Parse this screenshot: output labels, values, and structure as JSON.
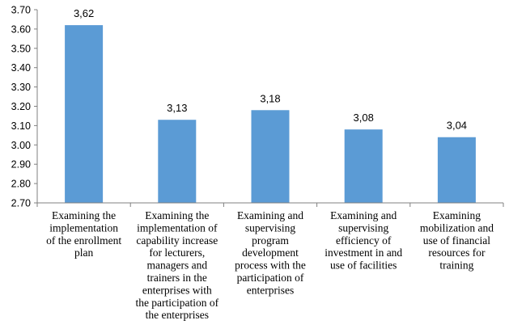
{
  "chart_data": {
    "type": "bar",
    "title": "",
    "xlabel": "",
    "ylabel": "",
    "ylim": [
      2.7,
      3.7
    ],
    "ytick_step": 0.1,
    "ytick_labels": [
      "2.70",
      "2.80",
      "2.90",
      "3.00",
      "3.10",
      "3.20",
      "3.30",
      "3.40",
      "3.50",
      "3.60",
      "3.70"
    ],
    "values": [
      3.62,
      3.13,
      3.18,
      3.08,
      3.04
    ],
    "data_labels": [
      "3,62",
      "3,13",
      "3,18",
      "3,08",
      "3,04"
    ],
    "categories": [
      [
        "Examining the",
        "implementation",
        "of the enrollment",
        "plan"
      ],
      [
        "Examining the",
        "implementation of",
        "capability increase",
        "for lecturers,",
        "managers and",
        "trainers in the",
        "enterprises with",
        "the participation of",
        "the enterprises"
      ],
      [
        "Examining and",
        "supervising",
        "program",
        "development",
        "process with the",
        "participation of",
        "enterprises"
      ],
      [
        "Examining and",
        "supervising",
        "efficiency of",
        "investment in and",
        "use of facilities"
      ],
      [
        "Examining",
        "mobilization and",
        "use of financial",
        "resources for",
        "training"
      ]
    ],
    "bar_color": "#5b9bd5",
    "axis_color": "#808080",
    "grid": false,
    "legend": "none"
  }
}
